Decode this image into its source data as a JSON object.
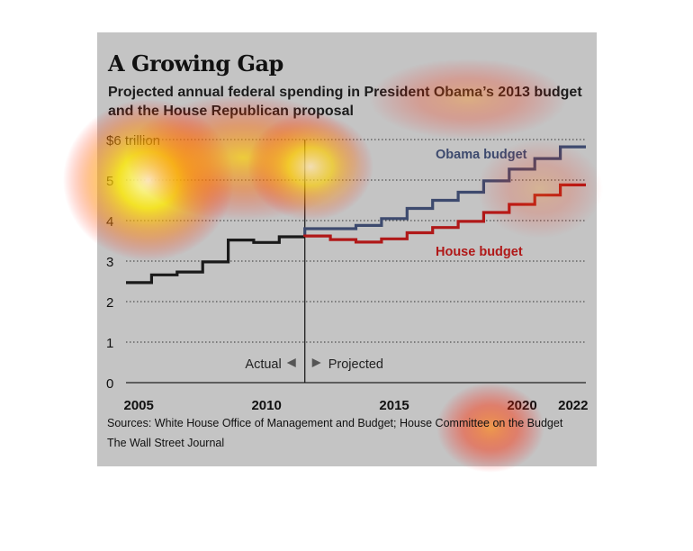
{
  "header": {
    "title": "A Growing Gap",
    "subtitle_line1": "Projected annual federal spending in President Obama’s 2013 budget",
    "subtitle_line2": "and the House Republican proposal"
  },
  "footer": {
    "sources": "Sources: White House Office of Management and Budget; House Committee on the Budget",
    "publisher": "The Wall Street Journal"
  },
  "colors": {
    "panel": "#c4c4c4",
    "actual": "#1a1a1a",
    "obama": "#3d4a6e",
    "house": "#b01818",
    "grid": "#333333"
  },
  "chart_data": {
    "type": "line",
    "step": true,
    "ylim": [
      0,
      6
    ],
    "xlim": [
      2004.5,
      2022.5
    ],
    "y_ticks": [
      {
        "value": 0,
        "label": "0"
      },
      {
        "value": 1,
        "label": "1"
      },
      {
        "value": 2,
        "label": "2"
      },
      {
        "value": 3,
        "label": "3"
      },
      {
        "value": 4,
        "label": "4"
      },
      {
        "value": 5,
        "label": "5"
      },
      {
        "value": 6,
        "label": "$6 trillion"
      }
    ],
    "x_ticks": [
      {
        "value": 2005,
        "label": "2005"
      },
      {
        "value": 2010,
        "label": "2010"
      },
      {
        "value": 2015,
        "label": "2015"
      },
      {
        "value": 2020,
        "label": "2020"
      },
      {
        "value": 2022,
        "label": "2022"
      }
    ],
    "grid": true,
    "divider": {
      "x": 2011.5,
      "left_label": "Actual",
      "right_label": "Projected"
    },
    "series": [
      {
        "name": "",
        "key": "actual",
        "x": [
          2005,
          2006,
          2007,
          2008,
          2009,
          2010,
          2011
        ],
        "values": [
          2.47,
          2.66,
          2.73,
          2.98,
          3.52,
          3.46,
          3.6
        ]
      },
      {
        "name": "Obama budget",
        "key": "obama",
        "x": [
          2012,
          2013,
          2014,
          2015,
          2016,
          2017,
          2018,
          2019,
          2020,
          2021,
          2022
        ],
        "values": [
          3.8,
          3.8,
          3.88,
          4.05,
          4.3,
          4.5,
          4.7,
          4.98,
          5.27,
          5.53,
          5.82
        ]
      },
      {
        "name": "House budget",
        "key": "house",
        "x": [
          2012,
          2013,
          2014,
          2015,
          2016,
          2017,
          2018,
          2019,
          2020,
          2021,
          2022
        ],
        "values": [
          3.62,
          3.53,
          3.47,
          3.55,
          3.7,
          3.83,
          3.98,
          4.2,
          4.4,
          4.63,
          4.88
        ]
      }
    ]
  }
}
